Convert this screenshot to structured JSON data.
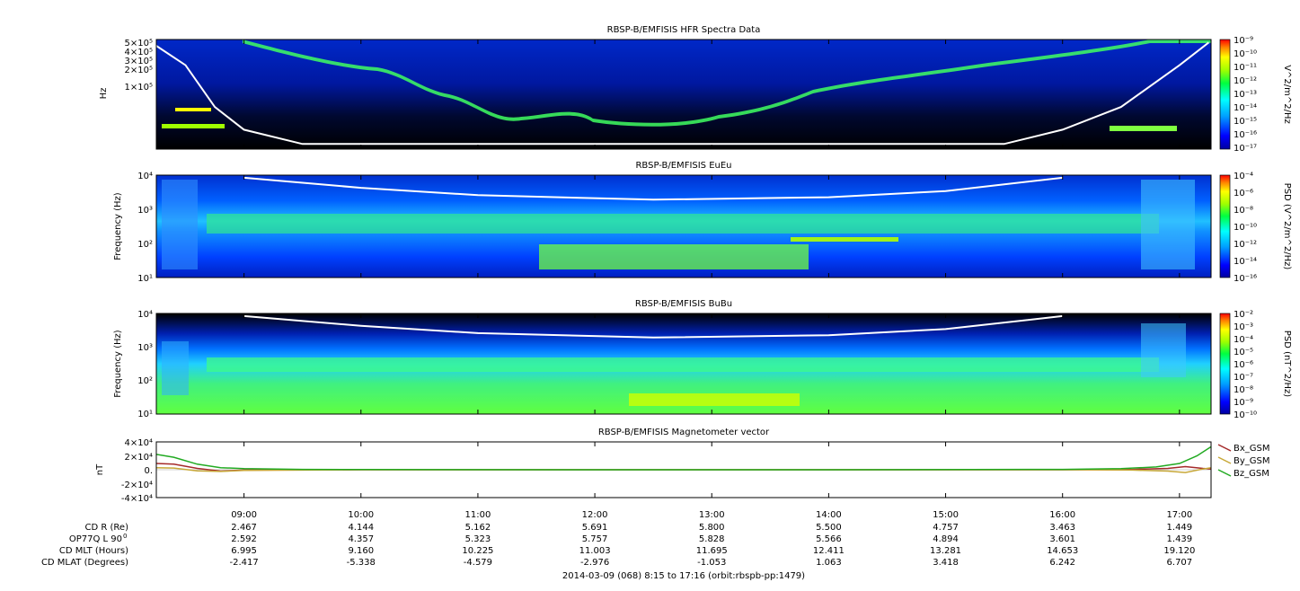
{
  "chart_data": [
    {
      "type": "heatmap",
      "title": "RBSP-B/EMFISIS  HFR Spectra Data",
      "ylabel": "Hz",
      "y_scale": "log",
      "ytick_labels": [
        "5×10⁵",
        "4×10⁵",
        "3×10⁵",
        "2×10⁵",
        "1×10⁵"
      ],
      "ytick_values": [
        500000,
        400000,
        300000,
        200000,
        100000
      ],
      "ylim": [
        10000,
        500000
      ],
      "colorbar_label": "V^2/m^2/Hz",
      "colorbar_ticks": [
        "10⁻⁹",
        "10⁻¹⁰",
        "10⁻¹¹",
        "10⁻¹²",
        "10⁻¹³",
        "10⁻¹⁴",
        "10⁻¹⁵",
        "10⁻¹⁶",
        "10⁻¹⁷"
      ],
      "colorbar_range": [
        -17,
        -9
      ],
      "overlay_line": "white",
      "overlay": {
        "x": [
          8.25,
          8.5,
          8.75,
          9.0,
          9.5,
          15.5,
          16.0,
          16.5,
          17.0,
          17.25
        ],
        "y": [
          400000,
          200000,
          45000,
          20000,
          12000,
          12000,
          20000,
          45000,
          200000,
          450000
        ]
      }
    },
    {
      "type": "heatmap",
      "title": "RBSP-B/EMFISIS  EuEu",
      "ylabel": "Frequency (Hz)",
      "y_scale": "log",
      "ytick_labels": [
        "10⁴",
        "10³",
        "10²",
        "10¹"
      ],
      "ytick_values": [
        10000,
        1000,
        100,
        10
      ],
      "ylim": [
        10,
        12000
      ],
      "colorbar_label": "PSD (V^2/m^2/Hz)",
      "colorbar_ticks": [
        "10⁻⁴",
        "10⁻⁶",
        "10⁻⁸",
        "10⁻¹⁰",
        "10⁻¹²",
        "10⁻¹⁴",
        "10⁻¹⁶"
      ],
      "colorbar_range": [
        -16,
        -4
      ],
      "overlay_line": "white",
      "overlay": {
        "x": [
          9.0,
          10.0,
          11.0,
          12.5,
          14.0,
          15.0,
          16.0
        ],
        "y": [
          10000,
          5000,
          3000,
          2200,
          2600,
          4000,
          10000
        ]
      }
    },
    {
      "type": "heatmap",
      "title": "RBSP-B/EMFISIS  BuBu",
      "ylabel": "Frequency (Hz)",
      "y_scale": "log",
      "ytick_labels": [
        "10⁴",
        "10³",
        "10²",
        "10¹"
      ],
      "ytick_values": [
        10000,
        1000,
        100,
        10
      ],
      "ylim": [
        10,
        12000
      ],
      "colorbar_label": "PSD (nT^2/Hz)",
      "colorbar_ticks": [
        "10⁻²",
        "10⁻³",
        "10⁻⁴",
        "10⁻⁵",
        "10⁻⁶",
        "10⁻⁷",
        "10⁻⁸",
        "10⁻⁹",
        "10⁻¹⁰"
      ],
      "colorbar_range": [
        -10,
        -2
      ],
      "overlay_line": "white",
      "overlay": {
        "x": [
          9.0,
          10.0,
          11.0,
          12.5,
          14.0,
          15.0,
          16.0
        ],
        "y": [
          10000,
          5000,
          3000,
          2200,
          2600,
          4000,
          10000
        ]
      }
    },
    {
      "type": "line",
      "title": "RBSP-B/EMFISIS  Magnetometer vector",
      "ylabel": "nT",
      "ytick_labels": [
        "4×10⁴",
        "2×10⁴",
        "0.",
        "-2×10⁴",
        "-4×10⁴"
      ],
      "ytick_values": [
        40000,
        20000,
        0,
        -20000,
        -40000
      ],
      "ylim": [
        -40000,
        40000
      ],
      "legend_position": "right",
      "series": [
        {
          "name": "Bx_GSM",
          "color": "#a52a2a",
          "x": [
            8.25,
            8.4,
            8.6,
            8.8,
            9.0,
            10.0,
            12.0,
            14.0,
            16.0,
            16.6,
            16.9,
            17.05,
            17.2,
            17.27
          ],
          "y": [
            9000,
            8000,
            2000,
            -2000,
            -500,
            0,
            0,
            0,
            0,
            500,
            2000,
            4500,
            2000,
            1000
          ]
        },
        {
          "name": "By_GSM",
          "color": "#c8a838",
          "x": [
            8.25,
            8.4,
            8.6,
            8.8,
            9.0,
            10.0,
            12.0,
            14.0,
            16.0,
            16.6,
            16.9,
            17.05,
            17.2,
            17.27
          ],
          "y": [
            3000,
            2500,
            -1500,
            -2500,
            -1000,
            0,
            0,
            0,
            0,
            -500,
            -2000,
            -4000,
            1000,
            3000
          ]
        },
        {
          "name": "Bz_GSM",
          "color": "#22aa22",
          "x": [
            8.25,
            8.4,
            8.6,
            8.8,
            9.0,
            9.5,
            10.0,
            12.0,
            14.0,
            16.0,
            16.5,
            16.8,
            17.0,
            17.15,
            17.27
          ],
          "y": [
            22000,
            18000,
            8000,
            3000,
            1500,
            500,
            200,
            0,
            0,
            500,
            1500,
            4000,
            9000,
            20000,
            33000
          ]
        }
      ]
    }
  ],
  "x_axis": {
    "range_hours": [
      8.25,
      17.27
    ],
    "tick_hours": [
      9,
      10,
      11,
      12,
      13,
      14,
      15,
      16,
      17
    ],
    "tick_labels": [
      "09:00",
      "10:00",
      "11:00",
      "12:00",
      "13:00",
      "14:00",
      "15:00",
      "16:00",
      "17:00"
    ]
  },
  "ephemeris": {
    "rows": [
      {
        "label": "CD R (Re)",
        "values": [
          "2.467",
          "4.144",
          "5.162",
          "5.691",
          "5.800",
          "5.500",
          "4.757",
          "3.463",
          "1.449"
        ]
      },
      {
        "label": "OP77Q L 90",
        "sup": "0",
        "values": [
          "2.592",
          "4.357",
          "5.323",
          "5.757",
          "5.828",
          "5.566",
          "4.894",
          "3.601",
          "1.439"
        ]
      },
      {
        "label": "CD MLT (Hours)",
        "values": [
          "6.995",
          "9.160",
          "10.225",
          "11.003",
          "11.695",
          "12.411",
          "13.281",
          "14.653",
          "19.120"
        ]
      },
      {
        "label": "CD MLAT (Degrees)",
        "values": [
          "-2.417",
          "-5.338",
          "-4.579",
          "-2.976",
          "-1.053",
          "1.063",
          "3.418",
          "6.242",
          "6.707"
        ]
      }
    ]
  },
  "footer": "2014-03-09 (068) 8:15 to 17:16 (orbit:rbspb-pp:1479)",
  "colors": {
    "spectrogram_background": "#000000",
    "overlay_line": "#ffffff"
  }
}
